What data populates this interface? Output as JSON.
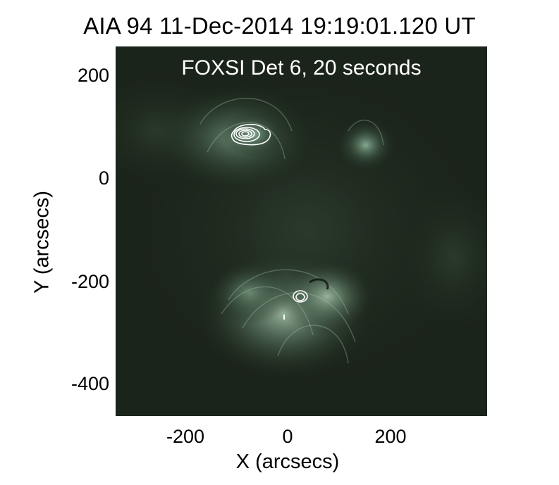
{
  "title": "AIA 94 11-Dec-2014 19:19:01.120 UT",
  "overlay_label": "FOXSI Det 6, 20 seconds",
  "axes": {
    "xlabel": "X (arcsecs)",
    "ylabel": "Y (arcsecs)",
    "xticks": [
      "-200",
      "0",
      "200"
    ],
    "yticks": [
      "200",
      "0",
      "-200",
      "-400"
    ],
    "xrange": [
      -330,
      380
    ],
    "yrange": [
      -460,
      260
    ]
  },
  "image": {
    "colormap": "dark green (AIA 94 Å)",
    "contour_color": "#ffffff",
    "contour_sources": [
      {
        "x": -80,
        "y": 90,
        "levels": 5
      },
      {
        "x": 25,
        "y": -225,
        "levels": 2
      }
    ]
  }
}
